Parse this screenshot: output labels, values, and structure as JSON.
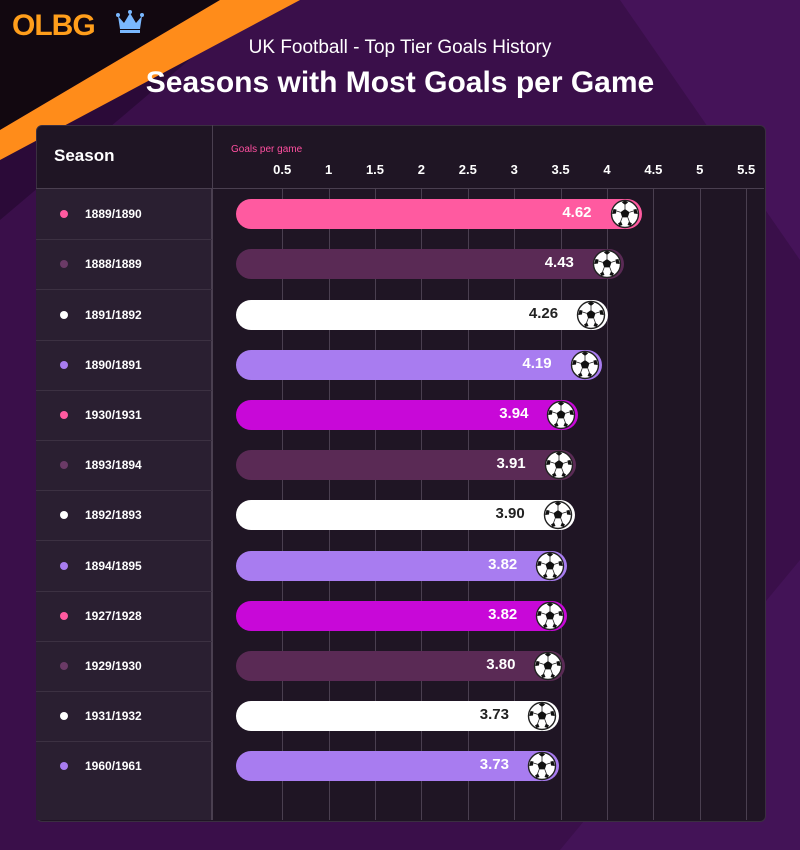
{
  "brand": {
    "logo_text": "OLBG"
  },
  "header": {
    "subtitle": "UK Football - Top Tier Goals History",
    "title": "Seasons with Most Goals per Game"
  },
  "table": {
    "season_header": "Season"
  },
  "colors": {
    "pink": "#ff5aa0",
    "plum": "#5a2a55",
    "white": "#ffffff",
    "lavender": "#a87cf0",
    "magenta": "#c808d8",
    "orange": "#ff9e1b"
  },
  "chart_data": {
    "type": "bar",
    "orientation": "horizontal",
    "xlabel": "Goals per game",
    "xticks": [
      "0.5",
      "1",
      "1.5",
      "2",
      "2.5",
      "3",
      "3.5",
      "4",
      "4.5",
      "5",
      "5.5"
    ],
    "xlim": [
      0.25,
      5.75
    ],
    "categories": [
      "1889/1890",
      "1888/1889",
      "1891/1892",
      "1890/1891",
      "1930/1931",
      "1893/1894",
      "1892/1893",
      "1894/1895",
      "1927/1928",
      "1929/1930",
      "1931/1932",
      "1960/1961"
    ],
    "values": [
      4.62,
      4.43,
      4.26,
      4.19,
      3.94,
      3.91,
      3.9,
      3.82,
      3.82,
      3.8,
      3.73,
      3.73
    ],
    "labels": [
      "4.62",
      "4.43",
      "4.26",
      "4.19",
      "3.94",
      "3.91",
      "3.90",
      "3.82",
      "3.82",
      "3.80",
      "3.73",
      "3.73"
    ],
    "bar_colors": [
      "#ff5aa0",
      "#5a2a55",
      "#ffffff",
      "#a87cf0",
      "#c808d8",
      "#5a2a55",
      "#ffffff",
      "#a87cf0",
      "#c808d8",
      "#5a2a55",
      "#ffffff",
      "#a87cf0"
    ],
    "label_colors": [
      "#ffffff",
      "#ffffff",
      "#222222",
      "#ffffff",
      "#ffffff",
      "#ffffff",
      "#222222",
      "#ffffff",
      "#ffffff",
      "#ffffff",
      "#222222",
      "#ffffff"
    ],
    "dot_colors": [
      "#ff5aa0",
      "#6a3a66",
      "#ffffff",
      "#a87cf0",
      "#ff5aa0",
      "#6a3a66",
      "#ffffff",
      "#a87cf0",
      "#ff5aa0",
      "#6a3a66",
      "#ffffff",
      "#a87cf0"
    ],
    "bar_icon": "soccer-ball-icon",
    "grid": true
  }
}
